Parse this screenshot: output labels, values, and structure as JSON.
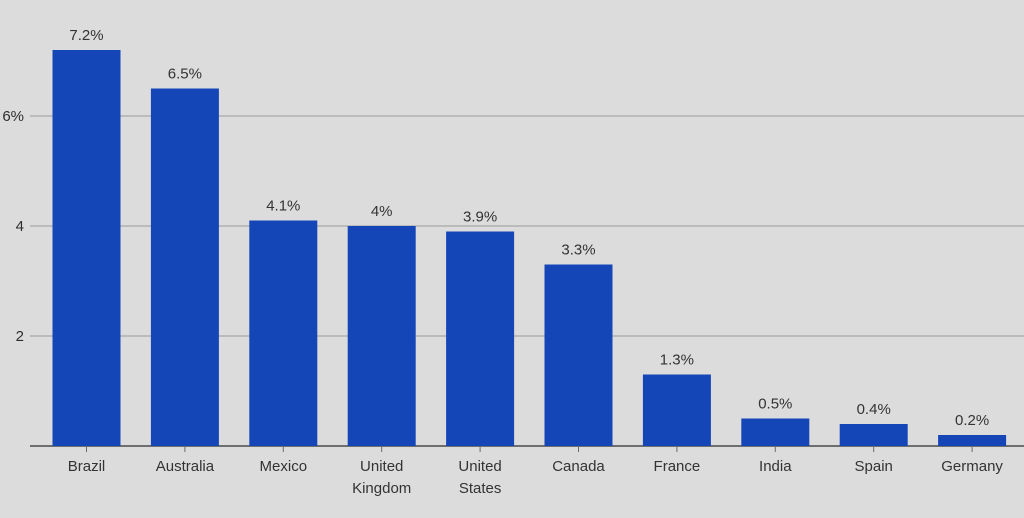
{
  "chart_data": {
    "type": "bar",
    "categories": [
      "Brazil",
      "Australia",
      "Mexico",
      "United Kingdom",
      "United States",
      "Canada",
      "France",
      "India",
      "Spain",
      "Germany"
    ],
    "category_lines": [
      [
        "Brazil"
      ],
      [
        "Australia"
      ],
      [
        "Mexico"
      ],
      [
        "United",
        "Kingdom"
      ],
      [
        "United",
        "States"
      ],
      [
        "Canada"
      ],
      [
        "France"
      ],
      [
        "India"
      ],
      [
        "Spain"
      ],
      [
        "Germany"
      ]
    ],
    "values": [
      7.2,
      6.5,
      4.1,
      4,
      3.9,
      3.3,
      1.3,
      0.5,
      0.4,
      0.2
    ],
    "value_labels": [
      "7.2%",
      "6.5%",
      "4.1%",
      "4%",
      "3.9%",
      "3.3%",
      "1.3%",
      "0.5%",
      "0.4%",
      "0.2%"
    ],
    "y_ticks": [
      {
        "value": 2,
        "label": "2"
      },
      {
        "value": 4,
        "label": "4"
      },
      {
        "value": 6,
        "label": "6%"
      }
    ],
    "ylim": [
      0,
      7.2
    ],
    "title": "",
    "xlabel": "",
    "ylabel": "",
    "grid": true,
    "bar_color": "#1446b8",
    "background_color": "#dcdcdc"
  }
}
